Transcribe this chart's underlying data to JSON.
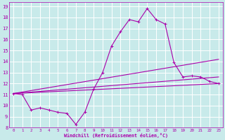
{
  "xlabel": "Windchill (Refroidissement éolien,°C)",
  "ylabel": "",
  "background_color": "#c8eaea",
  "grid_color": "#ffffff",
  "line_color": "#aa00aa",
  "xlim": [
    -0.5,
    23.5
  ],
  "ylim": [
    8,
    19.4
  ],
  "xticks": [
    0,
    1,
    2,
    3,
    4,
    5,
    6,
    7,
    8,
    9,
    10,
    11,
    12,
    13,
    14,
    15,
    16,
    17,
    18,
    19,
    20,
    21,
    22,
    23
  ],
  "yticks": [
    8,
    9,
    10,
    11,
    12,
    13,
    14,
    15,
    16,
    17,
    18,
    19
  ],
  "curve1_x": [
    0,
    1,
    2,
    3,
    4,
    5,
    6,
    7,
    8,
    9,
    10,
    11,
    12,
    13,
    14,
    15,
    16,
    17,
    18,
    19,
    20,
    21,
    22,
    23
  ],
  "curve1_y": [
    11.1,
    11.0,
    9.6,
    9.8,
    9.6,
    9.4,
    9.3,
    8.3,
    9.4,
    11.5,
    13.0,
    15.4,
    16.7,
    17.8,
    17.6,
    18.8,
    17.8,
    17.4,
    13.9,
    12.6,
    12.7,
    12.6,
    12.2,
    12.0
  ],
  "line1_x": [
    0,
    23
  ],
  "line1_y": [
    11.1,
    12.0
  ],
  "line2_x": [
    0,
    23
  ],
  "line2_y": [
    11.1,
    12.6
  ],
  "line3_x": [
    0,
    23
  ],
  "line3_y": [
    11.1,
    14.2
  ]
}
